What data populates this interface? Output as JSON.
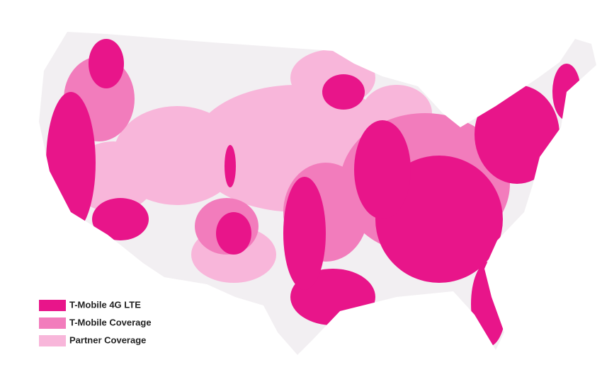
{
  "legend": {
    "items": [
      {
        "label": "T-Mobile 4G LTE",
        "color": "#e8158a"
      },
      {
        "label": "T-Mobile Coverage",
        "color": "#f27cbc"
      },
      {
        "label": "Partner Coverage",
        "color": "#f8b6da"
      }
    ]
  }
}
